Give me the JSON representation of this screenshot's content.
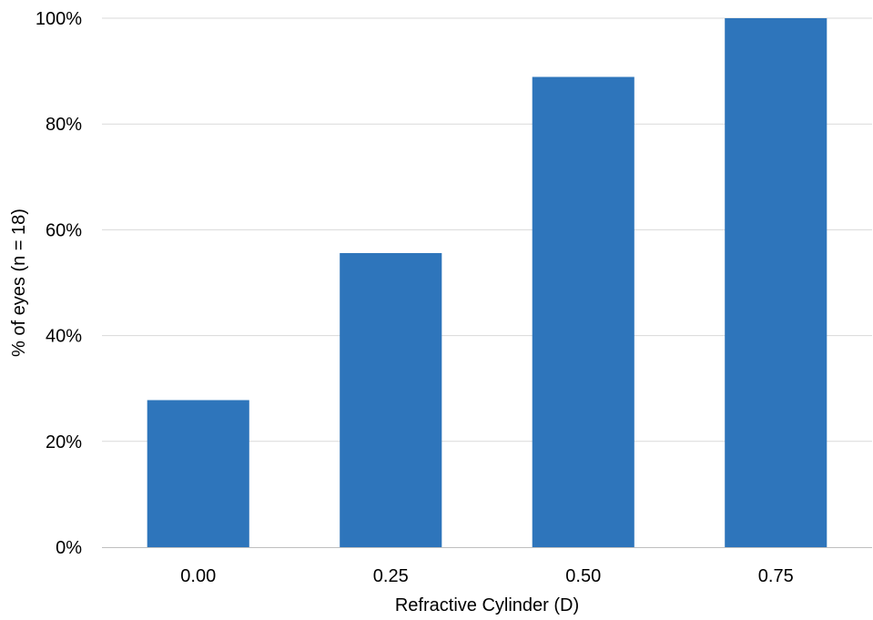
{
  "chart_data": {
    "type": "bar",
    "categories": [
      "0.00",
      "0.25",
      "0.50",
      "0.75"
    ],
    "values": [
      27.8,
      55.6,
      88.9,
      100
    ],
    "xlabel": "Refractive Cylinder (D)",
    "ylabel": "% of eyes (n = 18)",
    "ylim": [
      0,
      100
    ],
    "yticks": [
      0,
      20,
      40,
      60,
      80,
      100
    ],
    "ytick_labels": [
      "0%",
      "20%",
      "40%",
      "60%",
      "80%",
      "100%"
    ],
    "grid": "horizontal",
    "legend": "none",
    "colors": {
      "bar": "#2e75bb",
      "grid": "#d9d9d9",
      "axis": "#bfbfbf"
    }
  }
}
